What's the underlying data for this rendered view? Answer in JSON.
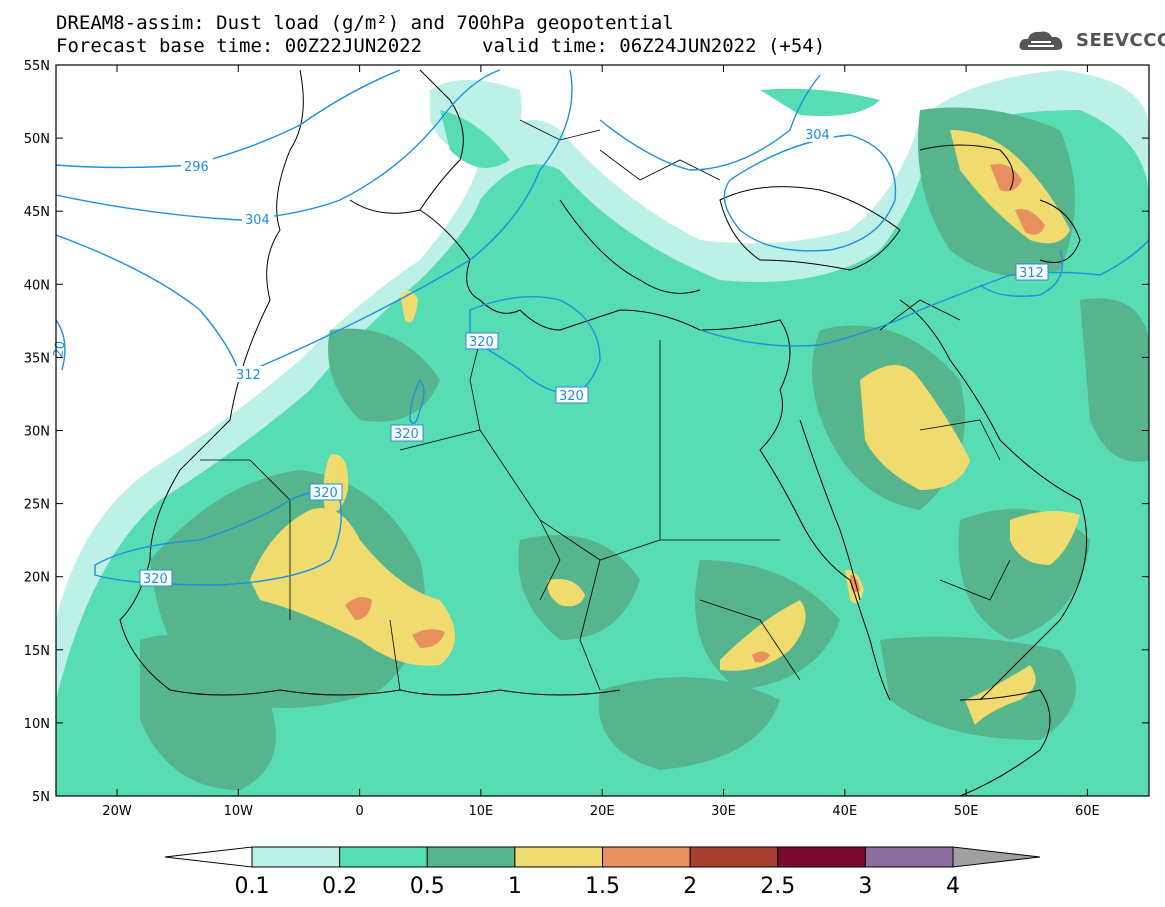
{
  "title": {
    "line1": "DREAM8-assim: Dust load (g/m²) and 700hPa geopotential",
    "base": "Forecast base time: 00Z22JUN2022",
    "valid": "valid time: 06Z24JUN2022 (+54)"
  },
  "logo": {
    "text": "SEEVCCC",
    "icon": "cloud-logo-icon"
  },
  "axes": {
    "lat_labels": [
      "55N",
      "50N",
      "45N",
      "40N",
      "35N",
      "30N",
      "25N",
      "20N",
      "15N",
      "10N",
      "5N"
    ],
    "lon_labels": [
      "20W",
      "10W",
      "0",
      "10E",
      "20E",
      "30E",
      "40E",
      "50E",
      "60E"
    ]
  },
  "contours": {
    "labels": [
      "296",
      "304",
      "304",
      "312",
      "312",
      "320",
      "320",
      "320",
      "320",
      "320",
      "20"
    ]
  },
  "colorbar": {
    "ticks": [
      "0.1",
      "0.2",
      "0.5",
      "1",
      "1.5",
      "2",
      "2.5",
      "3",
      "4"
    ],
    "colors": [
      "#ffffff",
      "#bdf0e6",
      "#58dcb4",
      "#56b58c",
      "#f0dc6e",
      "#e89060",
      "#a84030",
      "#7a0a30",
      "#8c6ea0",
      "#a0a0a0"
    ]
  },
  "palette": {
    "land": "#ffffff",
    "dust_01": "#bdf0e6",
    "dust_02": "#58dcb4",
    "dust_05": "#56b58c",
    "dust_1": "#f0dc6e",
    "dust_15": "#e89060",
    "contour": "#1e90e0"
  }
}
